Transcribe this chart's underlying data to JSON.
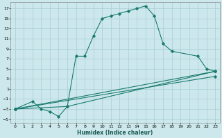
{
  "xlabel": "Humidex (Indice chaleur)",
  "background_color": "#cce8ec",
  "grid_color": "#a8cdd4",
  "line_color": "#1a7a6e",
  "xlim": [
    -0.5,
    23.5
  ],
  "ylim": [
    -5.8,
    18.2
  ],
  "xticks": [
    0,
    1,
    2,
    3,
    4,
    5,
    6,
    7,
    8,
    9,
    10,
    11,
    12,
    13,
    14,
    15,
    16,
    17,
    18,
    19,
    20,
    21,
    22,
    23
  ],
  "yticks": [
    -5,
    -3,
    -1,
    1,
    3,
    5,
    7,
    9,
    11,
    13,
    15,
    17
  ],
  "series": [
    {
      "x": [
        0,
        2,
        3,
        4,
        5,
        6,
        7,
        8,
        9,
        10,
        11,
        12,
        13,
        14,
        15,
        16,
        17,
        18,
        21,
        22,
        23
      ],
      "y": [
        -3,
        -1.5,
        -3,
        -3.5,
        -4.5,
        -2.5,
        7.5,
        7.5,
        11.5,
        15,
        15.5,
        16,
        16.5,
        17,
        17.5,
        15.5,
        10,
        8.5,
        7.5,
        5,
        4.5
      ]
    },
    {
      "x": [
        0,
        6,
        23
      ],
      "y": [
        -3,
        -2.5,
        4.5
      ]
    },
    {
      "x": [
        0,
        23
      ],
      "y": [
        -3,
        3.5
      ]
    },
    {
      "x": [
        0,
        23
      ],
      "y": [
        -3,
        4.5
      ]
    }
  ]
}
